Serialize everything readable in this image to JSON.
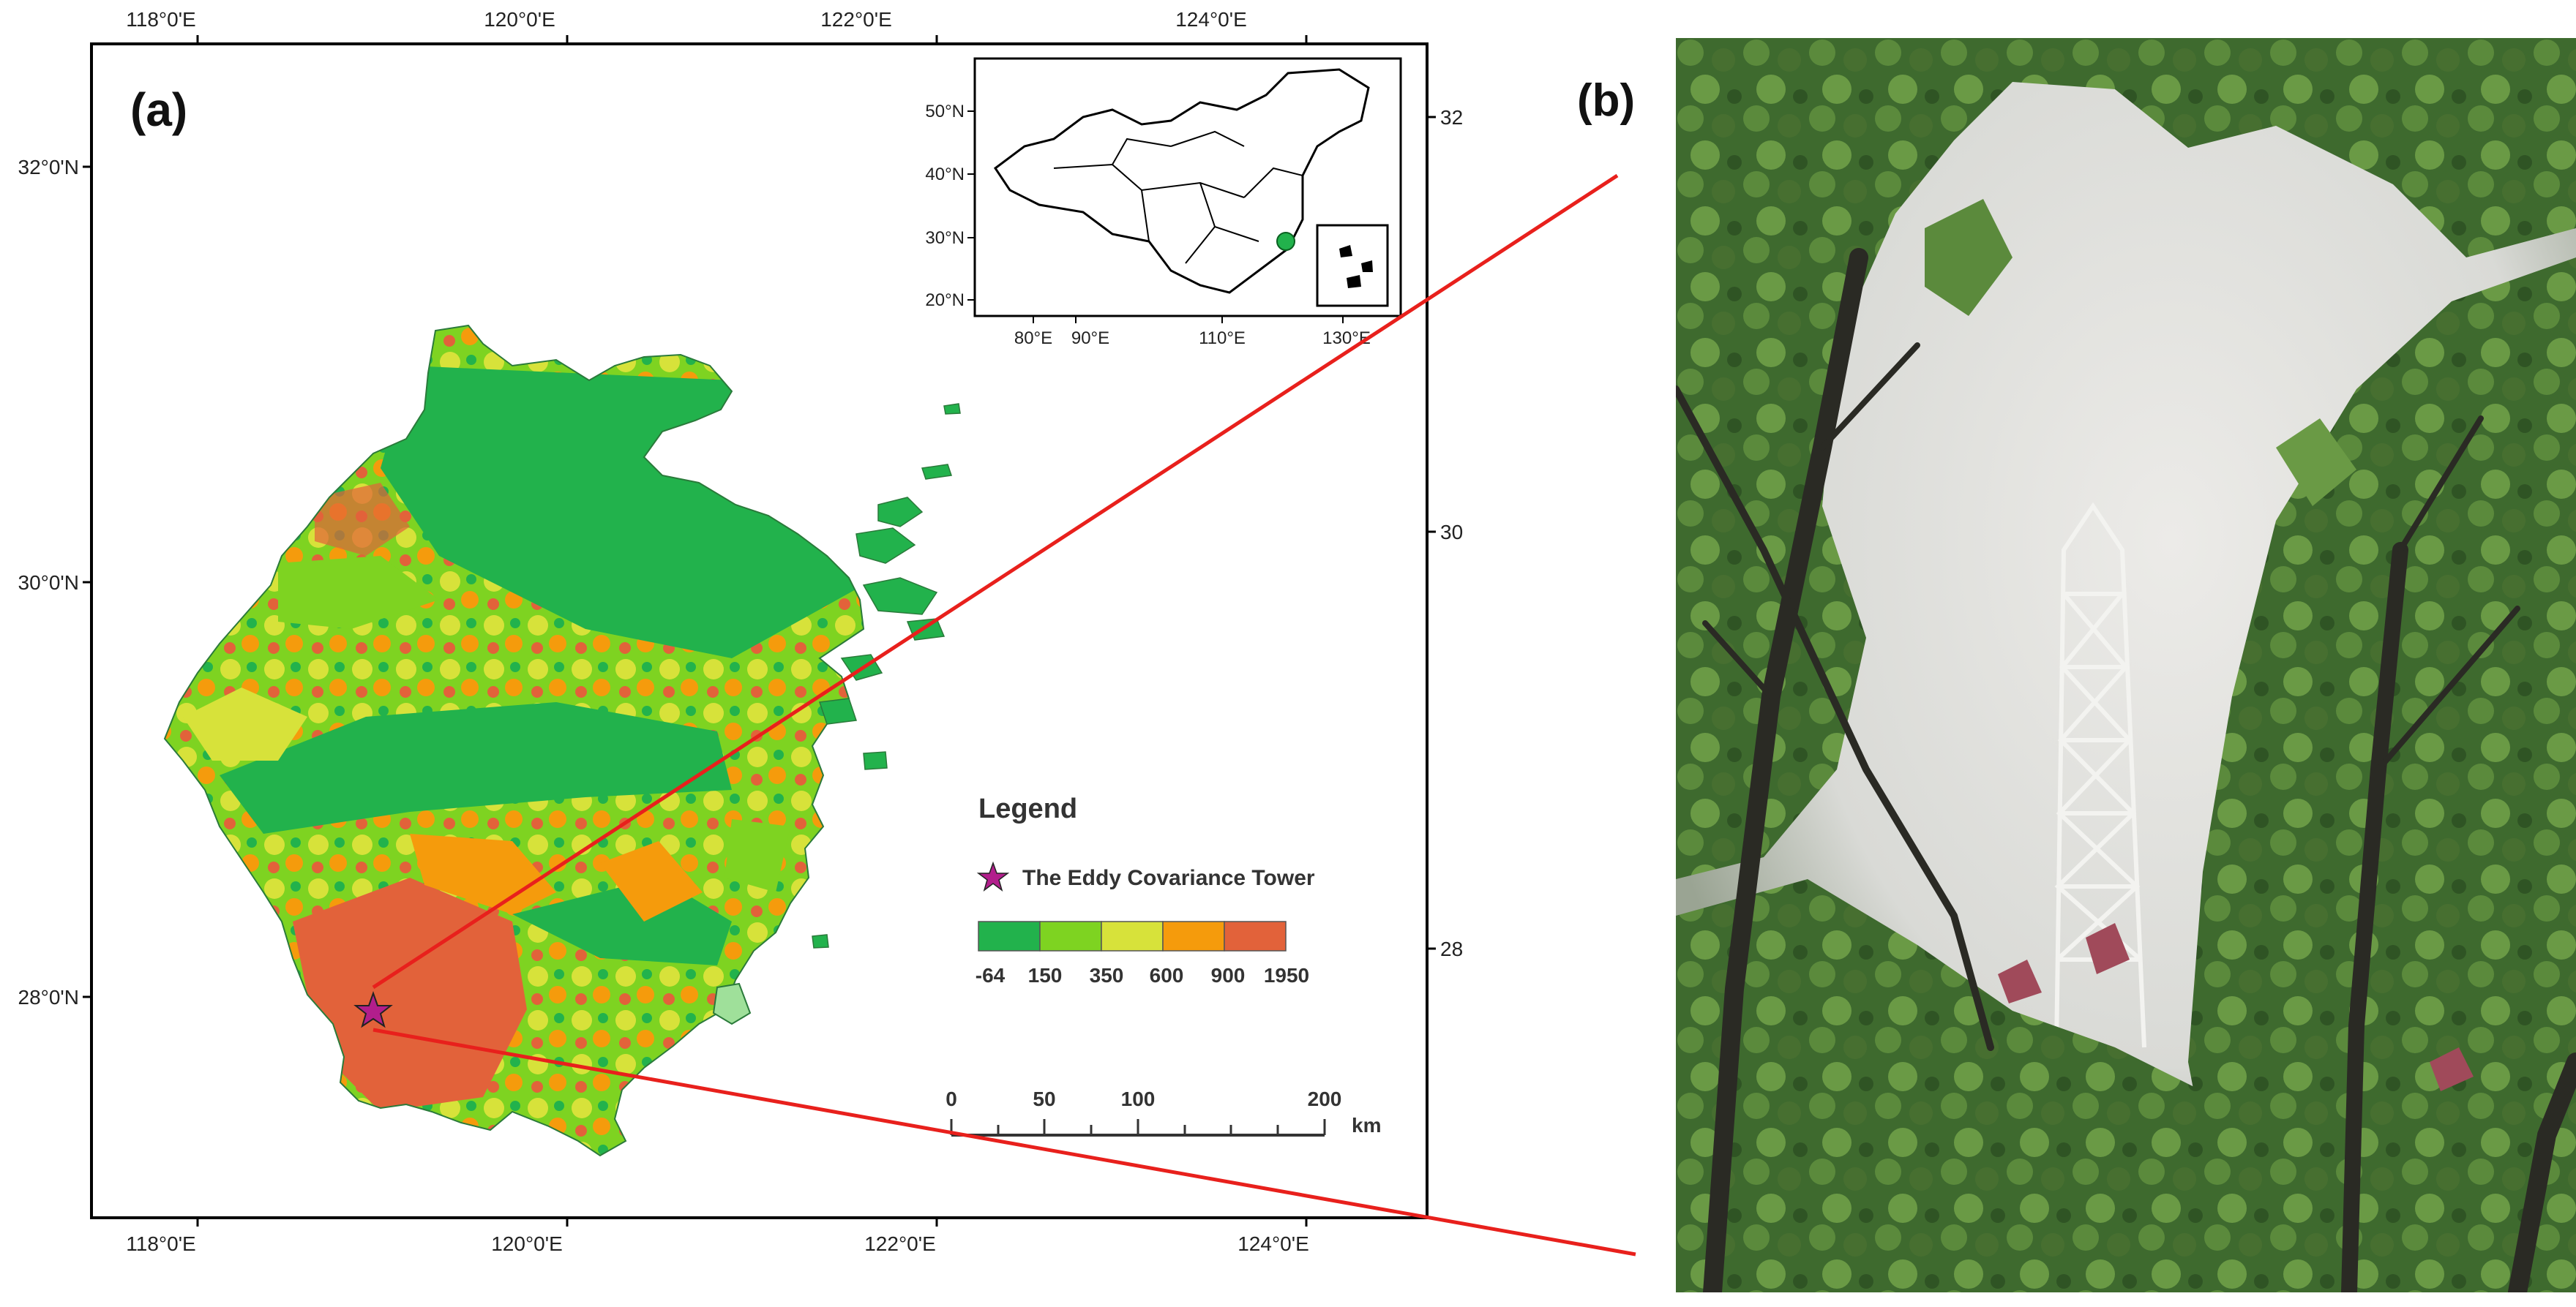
{
  "panel_a": {
    "label": "(a)",
    "top_ticks": [
      "118°0'E",
      "120°0'E",
      "122°0'E",
      "124°0'E"
    ],
    "bottom_ticks": [
      "118°0'E",
      "120°0'E",
      "122°0'E",
      "124°0'E"
    ],
    "left_ticks": [
      "32°0'N",
      "30°0'N",
      "28°0'N"
    ],
    "right_ticks": [
      "32°0'N",
      "30°0'N",
      "28°0'N"
    ],
    "inset": {
      "lat_ticks": [
        "50°N",
        "40°N",
        "30°N",
        "20°N"
      ],
      "lon_ticks": [
        "80°E",
        "90°E",
        "110°E",
        "130°E"
      ]
    },
    "legend": {
      "title": "Legend",
      "tower_label": "The Eddy Covariance Tower",
      "elevation_breaks": [
        "-64",
        "150",
        "350",
        "600",
        "900",
        "1950"
      ],
      "colors": [
        "#22b24c",
        "#7ed321",
        "#d7e23a",
        "#f59b0c",
        "#e2623a"
      ]
    },
    "scalebar": {
      "ticks": [
        "0",
        "50",
        "100",
        "200"
      ],
      "unit": "km"
    }
  },
  "panel_b": {
    "label": "(b)"
  }
}
